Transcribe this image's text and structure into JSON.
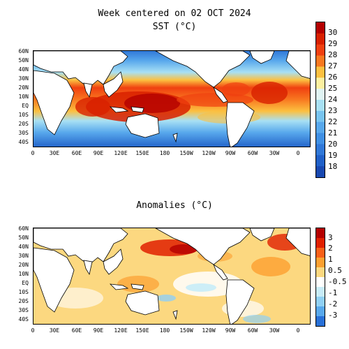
{
  "header": {
    "title": "Week centered on 02 OCT 2024",
    "subtitle": "SST (°C)"
  },
  "anomaly_panel": {
    "title": "Anomalies (°C)"
  },
  "lat_labels": [
    "60N",
    "50N",
    "40N",
    "30N",
    "20N",
    "10N",
    "EQ",
    "10S",
    "20S",
    "30S",
    "40S"
  ],
  "lon_labels": [
    "0",
    "30E",
    "60E",
    "90E",
    "120E",
    "150E",
    "180",
    "150W",
    "120W",
    "90W",
    "60W",
    "30W",
    "0"
  ],
  "sst_colorbar": {
    "labels": [
      "30",
      "29",
      "28",
      "27",
      "26",
      "25",
      "24",
      "23",
      "22",
      "21",
      "20",
      "19",
      "18"
    ],
    "colors": [
      "#b40000",
      "#d82000",
      "#f04010",
      "#f87820",
      "#fcc040",
      "#fcf0a0",
      "#e0f4f4",
      "#a8e0f4",
      "#78c4f0",
      "#58a8ec",
      "#4090e4",
      "#3078d8",
      "#2060c8",
      "#1848b0"
    ]
  },
  "anom_colorbar": {
    "labels": [
      "3",
      "2",
      "1",
      "0.5",
      "-0.5",
      "-1",
      "-2",
      "-3"
    ],
    "colors": [
      "#b40000",
      "#e02000",
      "#f86018",
      "#fca030",
      "#fcd880",
      "#ffffff",
      "#c8ecf8",
      "#90d0f4",
      "#58a8ec",
      "#2870d8"
    ]
  },
  "land_color": "#ffffff",
  "coast_color": "#000000"
}
